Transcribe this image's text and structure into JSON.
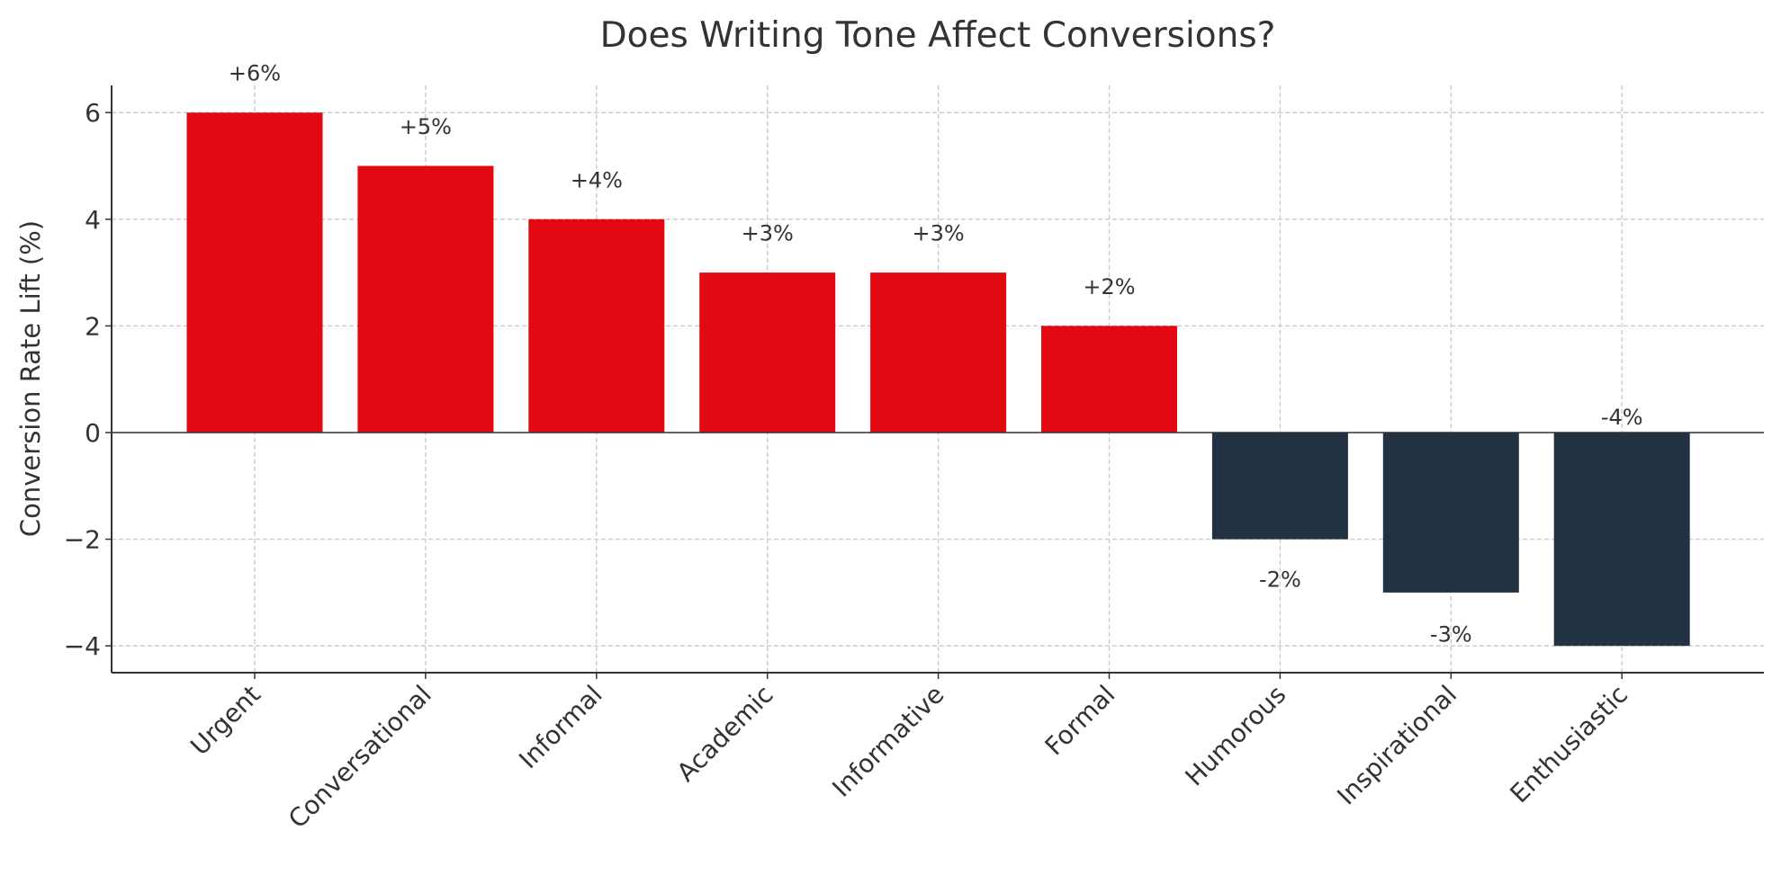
{
  "chart_data": {
    "type": "bar",
    "title": "Does Writing Tone Affect Conversions?",
    "xlabel": "",
    "ylabel": "Conversion Rate Lift (%)",
    "categories": [
      "Urgent",
      "Conversational",
      "Informal",
      "Academic",
      "Informative",
      "Formal",
      "Humorous",
      "Inspirational",
      "Enthusiastic"
    ],
    "values": [
      6,
      5,
      4,
      3,
      3,
      2,
      -2,
      -3,
      -4
    ],
    "data_labels": [
      "+6%",
      "+5%",
      "+4%",
      "+3%",
      "+3%",
      "+2%",
      "-2%",
      "-3%",
      "-4%"
    ],
    "ylim": [
      -4.5,
      6.5
    ],
    "yticks": [
      -4,
      -2,
      0,
      2,
      4,
      6
    ],
    "ytick_labels": [
      "−4",
      "−2",
      "0",
      "2",
      "4",
      "6"
    ],
    "grid": true,
    "colors": {
      "positive": "#E30913",
      "negative": "#223242"
    }
  }
}
